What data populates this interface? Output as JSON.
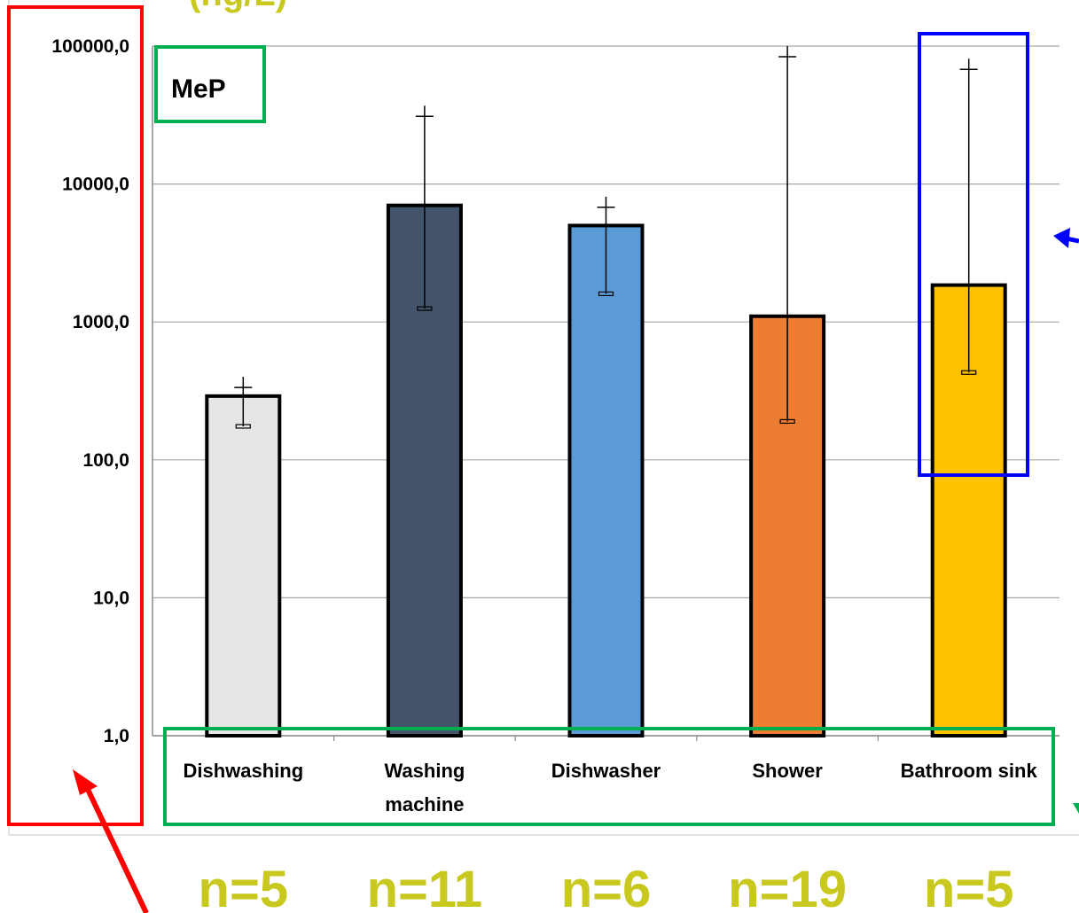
{
  "chart_data": {
    "type": "bar",
    "ylabel": "(ng/L)",
    "yscale": "log",
    "ylim": [
      1,
      100000
    ],
    "yticks": [
      "1,0",
      "10,0",
      "100,0",
      "1000,0",
      "10000,0",
      "100000,0"
    ],
    "grid": true,
    "legend": "top-left",
    "categories": [
      {
        "label": "Dishwashing",
        "lines": [
          "Dishwashing"
        ]
      },
      {
        "label": "Washing machine",
        "lines": [
          "Washing",
          "machine"
        ]
      },
      {
        "label": "Dishwasher",
        "lines": [
          "Dishwasher"
        ]
      },
      {
        "label": "Shower",
        "lines": [
          "Shower"
        ]
      },
      {
        "label": "Bathroom sink",
        "lines": [
          "Bathroom sink"
        ]
      }
    ],
    "series": [
      {
        "name": "MeP",
        "values": [
          290,
          7000,
          5000,
          1100,
          1850
        ],
        "error_low": [
          175,
          1250,
          1600,
          190,
          430
        ],
        "error_high": [
          400,
          37000,
          8100,
          100000,
          81000
        ],
        "colors": [
          "#e6e6e6",
          "#44546a",
          "#5b9bd5",
          "#ed7d31",
          "#ffc000"
        ]
      }
    ],
    "sample_counts": [
      "n=5",
      "n=11",
      "n=6",
      "n=19",
      "n=5"
    ],
    "annotation_colors": {
      "axis_box": "#ff0000",
      "category_box": "#00b050",
      "legend_box": "#00b050",
      "highlight_box": "#0000ff",
      "sample_text": "#c8c81e"
    }
  }
}
